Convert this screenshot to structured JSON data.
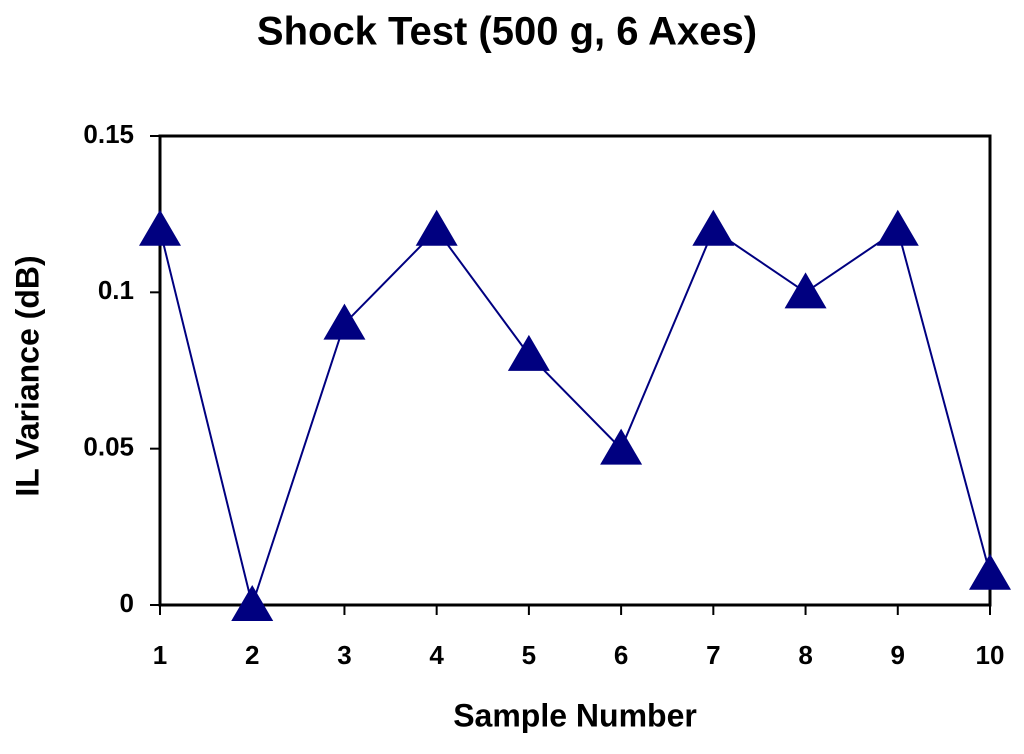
{
  "chart_data": {
    "type": "line",
    "title": "Shock Test (500 g, 6 Axes)",
    "x_label": "Sample Number",
    "y_label": "IL Variance (dB)",
    "x": [
      1,
      2,
      3,
      4,
      5,
      6,
      7,
      8,
      9,
      10
    ],
    "series": [
      {
        "name": "IL Variance",
        "color": "#000080",
        "values": [
          0.12,
          0,
          0.09,
          0.12,
          0.08,
          0.05,
          0.12,
          0.1,
          0.12,
          0.01
        ]
      }
    ],
    "xlim": [
      1,
      10
    ],
    "xticks": [
      1,
      2,
      3,
      4,
      5,
      6,
      7,
      8,
      9,
      10
    ],
    "ylim": [
      0,
      0.15
    ],
    "yticks": [
      0,
      0.05,
      0.1,
      0.15
    ]
  }
}
